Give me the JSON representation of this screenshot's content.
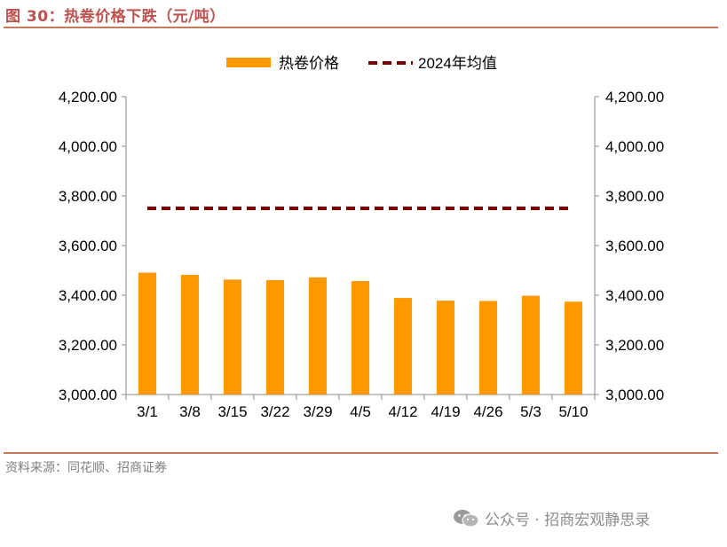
{
  "header": {
    "title": "图 30：热卷价格下跌（元/吨）"
  },
  "footer": {
    "source": "资料来源：同花顺、招商证券"
  },
  "watermark": {
    "icon": "wechat-icon",
    "text": "公众号 · 招商宏观静思录"
  },
  "colors": {
    "bar": "#ff9900",
    "avg_line": "#7f0000",
    "rule": "#c97a5a",
    "title": "#c0504d"
  },
  "chart_data": {
    "type": "bar",
    "categories": [
      "3/1",
      "3/8",
      "3/15",
      "3/22",
      "3/29",
      "4/5",
      "4/12",
      "4/19",
      "4/26",
      "5/3",
      "5/10"
    ],
    "series": [
      {
        "name": "热卷价格",
        "type": "bar",
        "values": [
          3491,
          3482,
          3463,
          3461,
          3472,
          3457,
          3389,
          3378,
          3377,
          3398,
          3374
        ]
      },
      {
        "name": "2024年均值",
        "type": "line",
        "style": "dashed",
        "values": [
          3750,
          3750,
          3750,
          3750,
          3750,
          3750,
          3750,
          3750,
          3750,
          3750,
          3750
        ]
      }
    ],
    "ylim": [
      3000,
      4200
    ],
    "y_ticks": [
      "3,000.00",
      "3,200.00",
      "3,400.00",
      "3,600.00",
      "3,800.00",
      "4,000.00",
      "4,200.00"
    ],
    "y_tick_values": [
      3000,
      3200,
      3400,
      3600,
      3800,
      4000,
      4200
    ],
    "secondary_y": true,
    "legend": "top-center",
    "grid": false,
    "xlabel": "",
    "ylabel": ""
  }
}
